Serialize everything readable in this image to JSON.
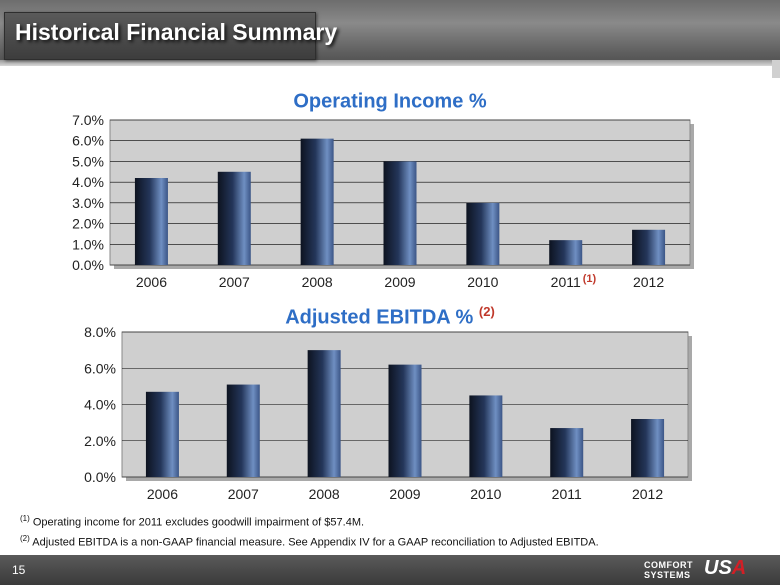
{
  "header": {
    "title": "Historical Financial Summary"
  },
  "chart_data": [
    {
      "type": "bar",
      "title": "Operating Income %",
      "title_note": "",
      "categories": [
        "2006",
        "2007",
        "2008",
        "2009",
        "2010",
        "2011",
        "2012"
      ],
      "category_notes": [
        "",
        "",
        "",
        "",
        "",
        "(1)",
        ""
      ],
      "values": [
        4.2,
        4.5,
        6.1,
        5.0,
        3.0,
        1.2,
        1.7
      ],
      "ylim": [
        0,
        7
      ],
      "yticks": [
        "0.0%",
        "1.0%",
        "2.0%",
        "3.0%",
        "4.0%",
        "5.0%",
        "6.0%",
        "7.0%"
      ],
      "grid": true
    },
    {
      "type": "bar",
      "title": "Adjusted EBITDA %",
      "title_note": "(2)",
      "categories": [
        "2006",
        "2007",
        "2008",
        "2009",
        "2010",
        "2011",
        "2012"
      ],
      "category_notes": [
        "",
        "",
        "",
        "",
        "",
        "",
        ""
      ],
      "values": [
        4.7,
        5.1,
        7.0,
        6.2,
        4.5,
        2.7,
        3.2
      ],
      "ylim": [
        0,
        8
      ],
      "yticks": [
        "0.0%",
        "2.0%",
        "4.0%",
        "6.0%",
        "8.0%"
      ],
      "grid": true
    }
  ],
  "footnotes": [
    {
      "marker": "(1)",
      "text": "Operating income for 2011 excludes goodwill impairment of $57.4M."
    },
    {
      "marker": "(2)",
      "text": "Adjusted EBITDA is a non-GAAP financial measure. See Appendix IV for a GAAP reconciliation to Adjusted EBITDA."
    }
  ],
  "footer": {
    "page_number": "15",
    "logo_line1": "COMFORT",
    "logo_line2": "SYSTEMS",
    "logo_usa_u": "U",
    "logo_usa_s": "S",
    "logo_usa_a": "A"
  }
}
